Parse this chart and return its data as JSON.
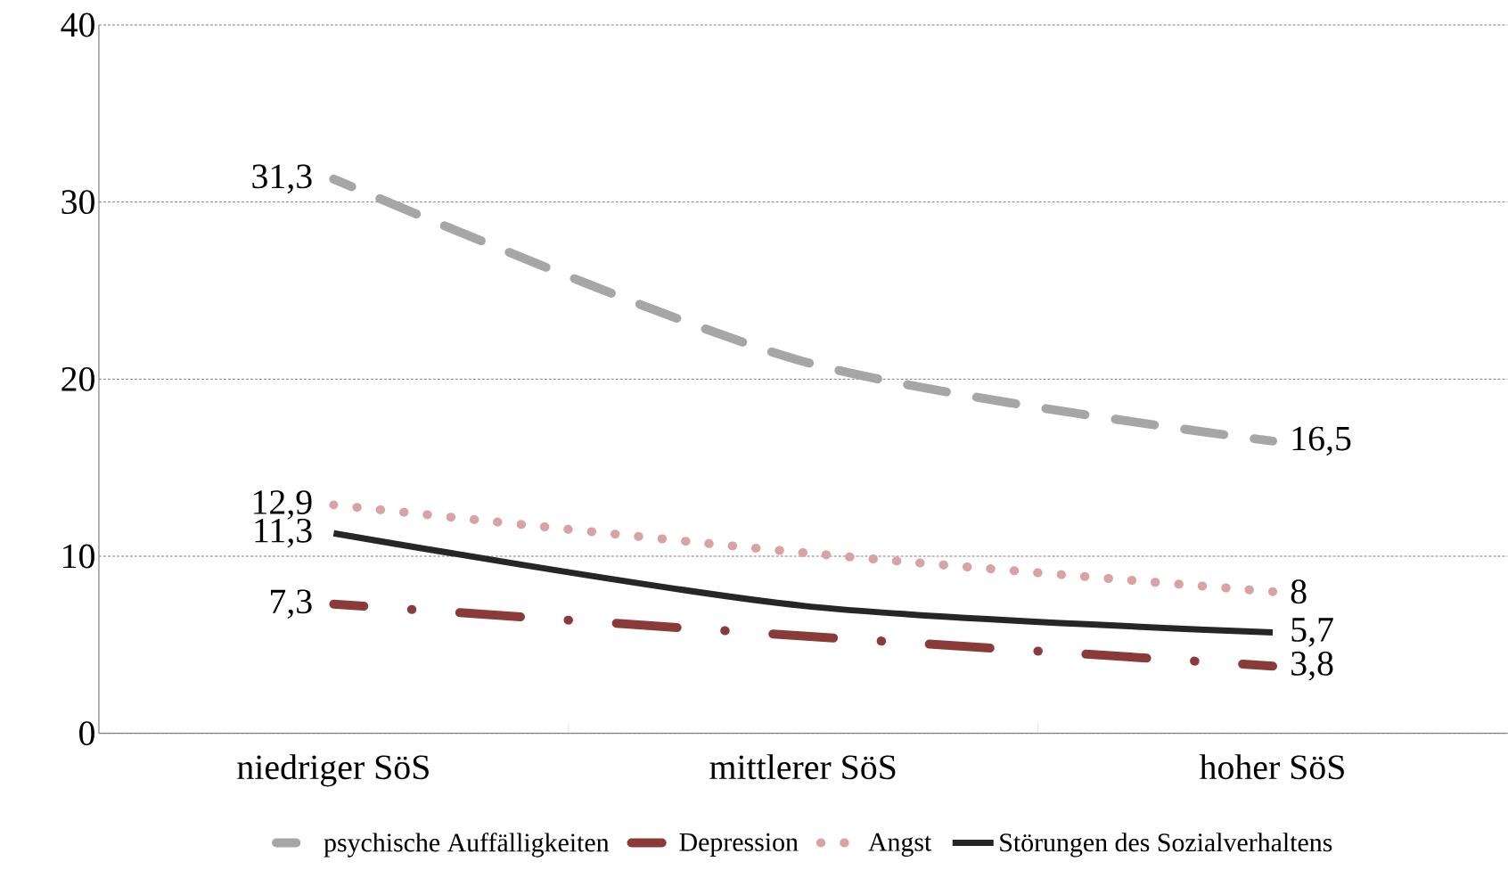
{
  "chart_data": {
    "type": "line",
    "categories": [
      "niedriger SöS",
      "mittlerer SöS",
      "hoher SöS"
    ],
    "series": [
      {
        "name": "psychische Auffälligkeiten",
        "color": "#a6a6a6",
        "line_style": "dashed",
        "values": [
          31.3,
          21.0,
          16.5
        ],
        "value_labels": [
          "31,3",
          null,
          "16,5"
        ]
      },
      {
        "name": "Depression",
        "color": "#8b3a3a",
        "line_style": "dashdot",
        "values": [
          7.3,
          5.5,
          3.8
        ],
        "value_labels": [
          "7,3",
          null,
          "3,8"
        ]
      },
      {
        "name": "Angst",
        "color": "#d9a3a3",
        "line_style": "dotted",
        "values": [
          12.9,
          10.2,
          8
        ],
        "value_labels": [
          "12,9",
          null,
          "8"
        ]
      },
      {
        "name": "Störungen des Sozialverhaltens",
        "color": "#262626",
        "line_style": "solid",
        "values": [
          11.3,
          7.2,
          5.7
        ],
        "value_labels": [
          "11,3",
          null,
          "5,7"
        ]
      }
    ],
    "ylim": [
      0,
      40
    ],
    "yticks": [
      0,
      10,
      20,
      30,
      40
    ],
    "grid": "y",
    "legend": "bottom",
    "marker": "none"
  }
}
